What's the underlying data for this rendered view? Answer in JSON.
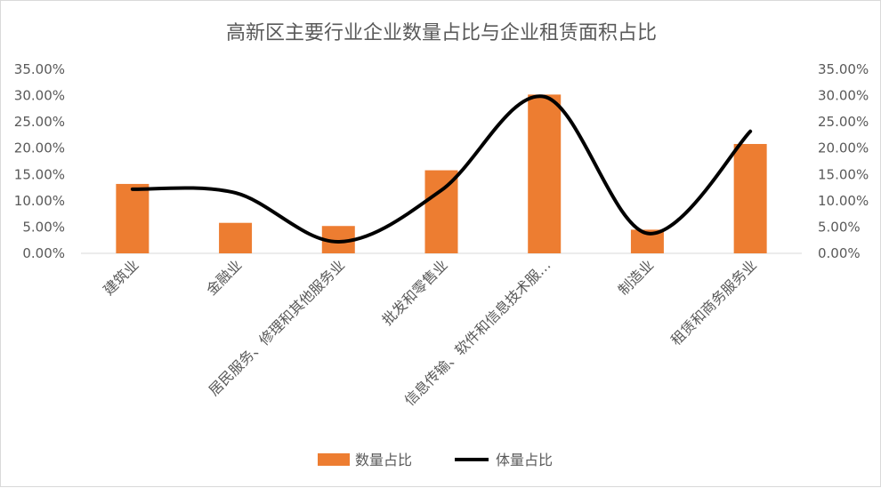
{
  "chart_data": {
    "type": "bar",
    "title": "高新区主要行业企业数量占比与企业租赁面积占比",
    "categories": [
      "建筑业",
      "金融业",
      "居民服务、修理和其他服务业",
      "批发和零售业",
      "信息传输、软件和信息技术服…",
      "制造业",
      "租赁和商务服务业"
    ],
    "series": [
      {
        "name": "数量占比",
        "type": "bar",
        "color": "#ed7d31",
        "axis": "left",
        "values": [
          13.2,
          5.8,
          5.2,
          15.8,
          30.2,
          4.5,
          20.8
        ]
      },
      {
        "name": "体量占比",
        "type": "line",
        "smooth": true,
        "color": "#000000",
        "axis": "right",
        "values": [
          12.2,
          11.5,
          2.2,
          12.0,
          29.8,
          3.8,
          23.2
        ]
      }
    ],
    "y_ticks": [
      "35.00%",
      "30.00%",
      "25.00%",
      "20.00%",
      "15.00%",
      "10.00%",
      "5.00%",
      "0.00%"
    ],
    "y2_ticks": [
      "35.00%",
      "30.00%",
      "25.00%",
      "20.00%",
      "15.00%",
      "10.00%",
      "5.00%",
      "0.00%"
    ],
    "ylim": [
      0,
      35
    ],
    "y2lim": [
      0,
      35
    ],
    "grid": false,
    "legend": "bottom"
  }
}
